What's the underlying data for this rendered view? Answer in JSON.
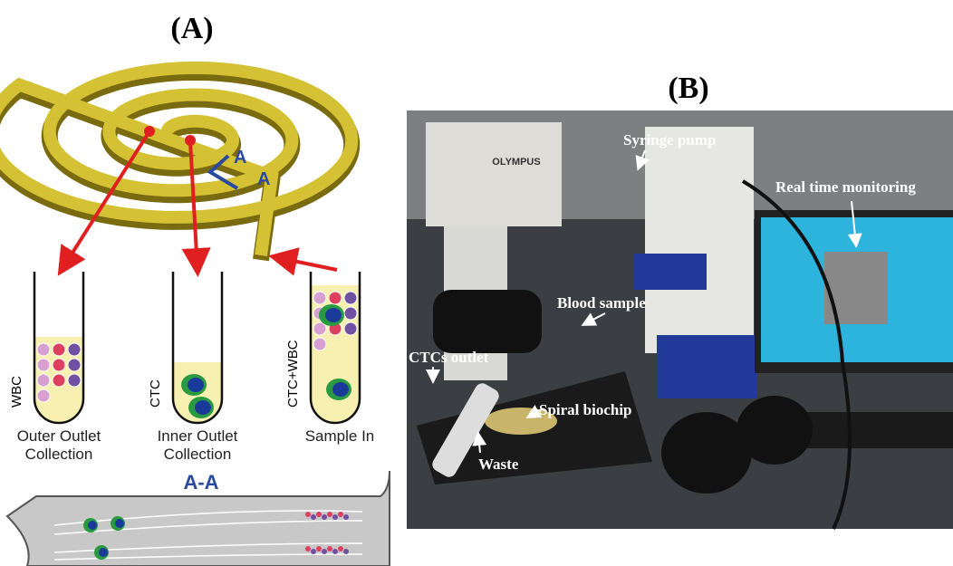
{
  "panel_a": {
    "label": "(A)",
    "section_marks": [
      "A",
      "A"
    ],
    "tubes": [
      {
        "content": "WBC",
        "caption": [
          "Outer Outlet",
          "Collection"
        ]
      },
      {
        "content": "CTC",
        "caption": [
          "Inner Outlet",
          "Collection"
        ]
      },
      {
        "content": "CTC+WBC",
        "caption": [
          "Sample In"
        ]
      }
    ],
    "cross_section_title": "A-A"
  },
  "panel_b": {
    "label": "(B)",
    "brand": "OLYMPUS",
    "photo_labels": [
      "Syringe pump",
      "Real time monitoring",
      "Blood sample",
      "CTCs outlet",
      "Spiral biochip",
      "Waste"
    ]
  }
}
